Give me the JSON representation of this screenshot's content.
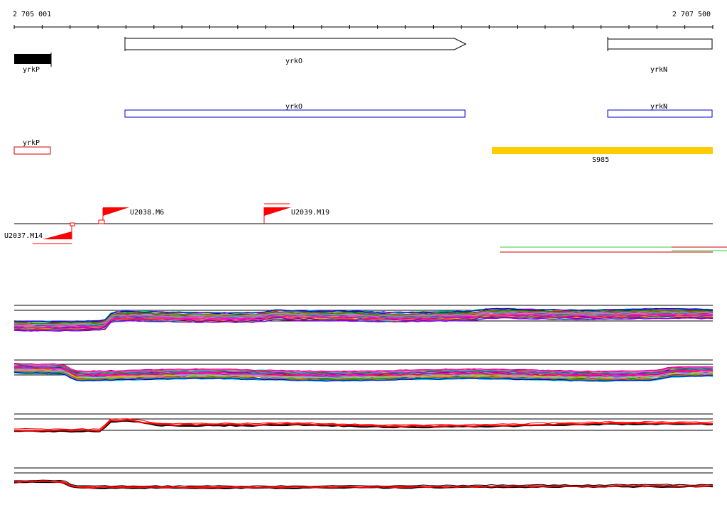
{
  "ruler": {
    "start_label": "2 705 001",
    "end_label": "2 707 500"
  },
  "genes": {
    "yrkP": "yrkP",
    "yrkO": "yrkO",
    "yrkN": "yrkN"
  },
  "cds": {
    "yrkO": "yrkO",
    "yrkN": "yrkN"
  },
  "rna": {
    "yrkP": "yrkP"
  },
  "segment": {
    "label": "S985"
  },
  "markers": {
    "m14": "U2037.M14",
    "m6": "U2038.M6",
    "m19": "U2039.M19"
  },
  "colors": {
    "gene_fill": "#000000",
    "cds_outline": "#0000cc",
    "rna_outline": "#cc0000",
    "segment_fill": "#ffcc00",
    "marker_red": "#ff0000",
    "signal_green": "#33cc33",
    "signal_red": "#cc0000"
  }
}
